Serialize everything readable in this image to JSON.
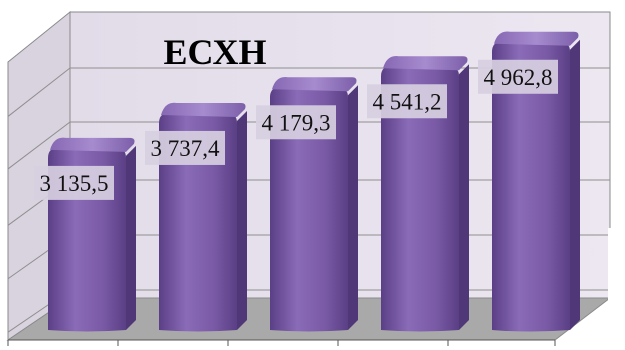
{
  "chart_data": {
    "type": "bar",
    "title": "ЕСХН",
    "categories": [
      "",
      "",
      "",
      "",
      ""
    ],
    "values": [
      3135.5,
      3737.4,
      4179.3,
      4541.2,
      4962.8
    ],
    "value_labels": [
      "3 135,5",
      "3 737,4",
      "4 179,3",
      "4 541,2",
      "4 962,8"
    ],
    "xlabel": "",
    "ylabel": "",
    "ylim": [
      0,
      5200
    ],
    "grid": true,
    "legend": "none",
    "style": "3d-column",
    "colors": {
      "bar_front": "#7a5aa6",
      "bar_side": "#4f3778",
      "bar_top": "#9a7cc6",
      "wall": "#e9e3ef",
      "floor": "#a9a9a9",
      "label_box": "#d7cfe1"
    }
  }
}
